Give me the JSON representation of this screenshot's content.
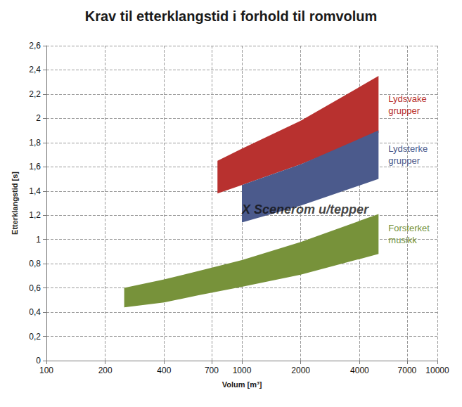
{
  "chart_data": {
    "type": "area",
    "title": "Krav til etterklangstid i forhold til romvolum",
    "x_label": "Volum [m³]",
    "y_label": "Etterklangstid [s]",
    "log": "x",
    "grid": true,
    "xlim": [
      100,
      10000
    ],
    "xticks": [
      100,
      200,
      400,
      700,
      1000,
      2000,
      4000,
      7000,
      10000
    ],
    "ylim": [
      0,
      2.6
    ],
    "yticks": [
      0,
      {
        "value": 0.2,
        "label": "0,2"
      },
      {
        "value": 0.4,
        "label": "0,4"
      },
      {
        "value": 0.6,
        "label": "0,6"
      },
      {
        "value": 0.8,
        "label": "0,8"
      },
      1,
      {
        "value": 1.2,
        "label": "1,2"
      },
      {
        "value": 1.4,
        "label": "1,4"
      },
      {
        "value": 1.6,
        "label": "1,6"
      },
      {
        "value": 1.8,
        "label": "1,8"
      },
      2,
      {
        "value": 2.2,
        "label": "2,2"
      },
      {
        "value": 2.4,
        "label": "2,4"
      },
      {
        "value": 2.6,
        "label": "2,6"
      }
    ],
    "series": [
      {
        "name": "Lydsvake grupper",
        "color": "#b8312f",
        "x": [
          750,
          1000,
          2000,
          5000
        ],
        "upper": [
          1.65,
          1.75,
          1.98,
          2.35
        ],
        "lower": [
          1.38,
          1.45,
          1.62,
          1.88
        ]
      },
      {
        "name": "Lydsterke grupper",
        "color": "#4b5a8c",
        "x": [
          1000,
          2000,
          5000
        ],
        "upper": [
          1.45,
          1.62,
          1.9
        ],
        "lower": [
          1.14,
          1.28,
          1.5
        ]
      },
      {
        "name": "Forsterket musikk",
        "color": "#77923a",
        "x": [
          250,
          400,
          600,
          1000,
          2000,
          5000
        ],
        "upper": [
          0.6,
          0.67,
          0.74,
          0.83,
          0.98,
          1.21
        ],
        "lower": [
          0.44,
          0.48,
          0.54,
          0.61,
          0.71,
          0.88
        ]
      }
    ],
    "annotations": [
      {
        "text": "X Scenerom u/tepper",
        "x": 1000,
        "y": 1.25
      }
    ]
  }
}
